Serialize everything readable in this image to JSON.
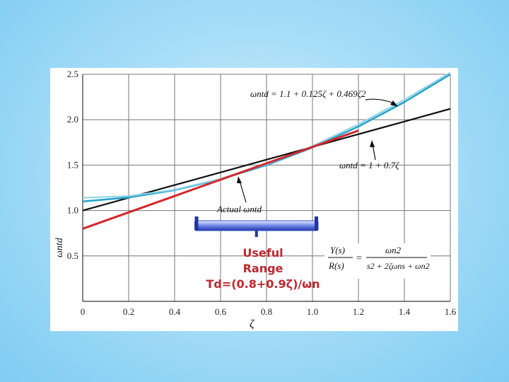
{
  "chart_data": {
    "type": "line",
    "xlabel": "ζ",
    "ylabel": "ωntd",
    "xlim": [
      0,
      1.6
    ],
    "ylim": [
      0,
      2.5
    ],
    "x_ticks": [
      "0",
      "0.2",
      "0.4",
      "0.6",
      "0.8",
      "1.0",
      "1.2",
      "1.4",
      "1.6"
    ],
    "y_ticks": [
      "0.5",
      "1.0",
      "1.5",
      "2.0",
      "2.5"
    ],
    "grid": true,
    "series": [
      {
        "color": "#111111",
        "points": [
          [
            0,
            1.0
          ],
          [
            0.2,
            1.14
          ],
          [
            0.4,
            1.28
          ],
          [
            0.6,
            1.42
          ],
          [
            0.8,
            1.56
          ],
          [
            1.0,
            1.7
          ],
          [
            1.2,
            1.84
          ],
          [
            1.4,
            1.98
          ],
          [
            1.6,
            2.12
          ]
        ]
      },
      {
        "color": "#29a3c9",
        "points": [
          [
            0,
            1.1
          ],
          [
            0.2,
            1.144
          ],
          [
            0.4,
            1.225
          ],
          [
            0.6,
            1.344
          ],
          [
            0.8,
            1.5
          ],
          [
            1.0,
            1.694
          ],
          [
            1.2,
            1.925
          ],
          [
            1.4,
            2.194
          ],
          [
            1.6,
            2.5
          ]
        ]
      },
      {
        "color": "#8fd3e8",
        "points": [
          [
            0,
            1.14
          ],
          [
            0.2,
            1.16
          ],
          [
            0.4,
            1.23
          ],
          [
            0.6,
            1.35
          ],
          [
            0.8,
            1.51
          ],
          [
            1.0,
            1.71
          ],
          [
            1.2,
            1.95
          ],
          [
            1.4,
            2.22
          ],
          [
            1.6,
            2.52
          ]
        ]
      },
      {
        "color": "#d6262b",
        "points": [
          [
            0,
            0.8
          ],
          [
            1.2,
            1.88
          ]
        ]
      }
    ],
    "annotations": {
      "eq_quadratic": "ωntd = 1.1 + 0.125ζ + 0.469ζ2",
      "eq_linear": "ωntd = 1 + 0.7ζ",
      "eq_actual": "Actual ωntd",
      "tf_lhs_num": "Y(s)",
      "tf_lhs_den": "R(s)",
      "tf_eq": "=",
      "tf_rhs_num": "ωn2",
      "tf_rhs_den": "s2 + 2ζωns + ωn2"
    },
    "useful_range": {
      "label_line1": "Useful",
      "label_line2": "Range",
      "label_line3": "Td=(0.8+0.9ζ)/ωn",
      "x_start": 0.5,
      "x_end": 1.0,
      "color": "#3a52c8"
    }
  }
}
